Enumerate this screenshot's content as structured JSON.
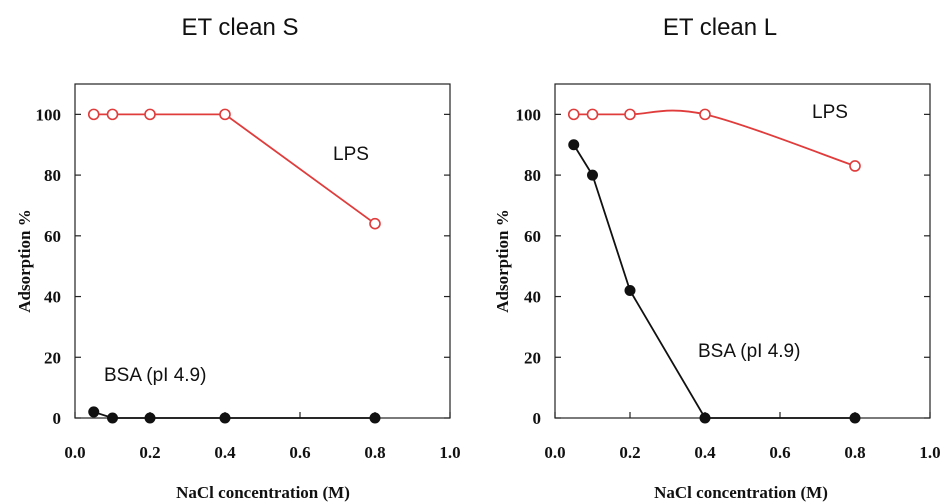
{
  "chart_data": [
    {
      "type": "line",
      "title": "ET clean S",
      "xlabel": "NaCl concentration (M)",
      "ylabel": "Adsorption %",
      "xlim": [
        0.0,
        1.0
      ],
      "ylim": [
        0,
        110
      ],
      "xticks": [
        "0.0",
        "0.2",
        "0.4",
        "0.6",
        "0.8",
        "1.0"
      ],
      "yticks": [
        "0",
        "20",
        "40",
        "60",
        "80",
        "100"
      ],
      "grid": false,
      "series": [
        {
          "name": "LPS",
          "color": "#e03c3c",
          "marker": "open-circle",
          "x": [
            0.05,
            0.1,
            0.2,
            0.4,
            0.8
          ],
          "y": [
            100,
            100,
            100,
            100,
            64
          ],
          "smooth": false
        },
        {
          "name": "BSA (pI 4.9)",
          "color": "#111111",
          "marker": "filled-circle",
          "x": [
            0.05,
            0.1,
            0.2,
            0.4,
            0.8
          ],
          "y": [
            2,
            0,
            0,
            0,
            0
          ],
          "smooth": false
        }
      ]
    },
    {
      "type": "line",
      "title": "ET clean L",
      "xlabel": "NaCl concentration (M)",
      "ylabel": "Adsorption %",
      "xlim": [
        0.0,
        1.0
      ],
      "ylim": [
        0,
        110
      ],
      "xticks": [
        "0.0",
        "0.2",
        "0.4",
        "0.6",
        "0.8",
        "1.0"
      ],
      "yticks": [
        "0",
        "20",
        "40",
        "60",
        "80",
        "100"
      ],
      "grid": false,
      "series": [
        {
          "name": "LPS",
          "color": "#e03c3c",
          "marker": "open-circle",
          "x": [
            0.05,
            0.1,
            0.2,
            0.4,
            0.8
          ],
          "y": [
            100,
            100,
            100,
            100,
            83
          ],
          "smooth": true
        },
        {
          "name": "BSA (pI 4.9)",
          "color": "#111111",
          "marker": "filled-circle",
          "x": [
            0.05,
            0.1,
            0.2,
            0.4,
            0.8
          ],
          "y": [
            90,
            80,
            42,
            0,
            0
          ],
          "smooth": false
        }
      ]
    }
  ]
}
